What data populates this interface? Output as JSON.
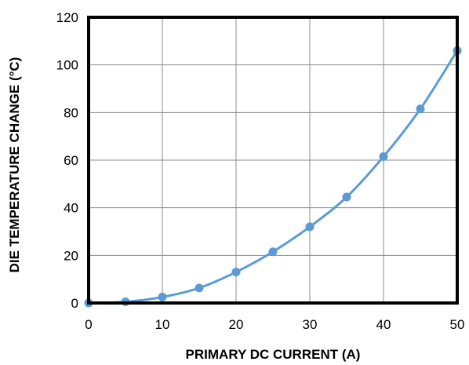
{
  "chart_data": {
    "type": "line",
    "title": "",
    "xlabel": "PRIMARY  DC CURRENT  (A)",
    "ylabel": "DIE TEMPERATURE  CHANGE  (°C)",
    "xlim": [
      0,
      50
    ],
    "ylim": [
      0,
      120
    ],
    "xticks": [
      "0",
      "10",
      "20",
      "30",
      "40",
      "50"
    ],
    "yticks": [
      "0",
      "20",
      "40",
      "60",
      "80",
      "100",
      "120"
    ],
    "grid": true,
    "legend": "none",
    "series": [
      {
        "color": "#5b9bd5",
        "smooth": true,
        "markers": true,
        "x": [
          0,
          5,
          10,
          15,
          20,
          25,
          30,
          35,
          40,
          45,
          50
        ],
        "y": [
          0,
          0.5,
          2.5,
          6.3,
          13,
          21.5,
          32,
          44.5,
          61.5,
          81.5,
          106
        ]
      }
    ]
  }
}
